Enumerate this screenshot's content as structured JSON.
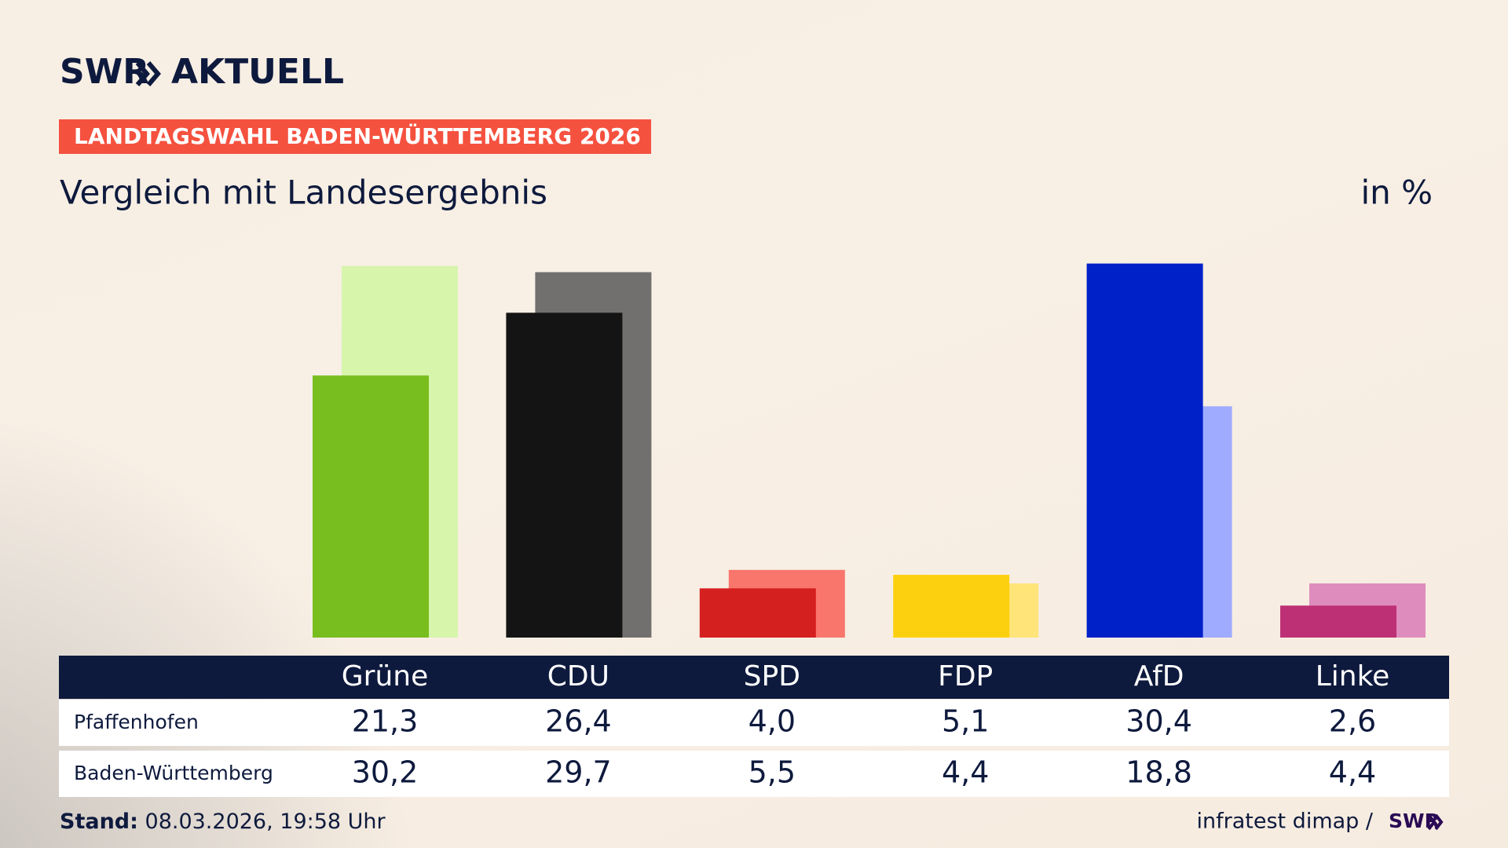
{
  "header": {
    "logo": "SWR",
    "logo_suffix": "AKTUELL",
    "kicker": "LANDTAGSWAHL BADEN-WÜRTTEMBERG 2026"
  },
  "chart_data": {
    "type": "bar",
    "title": "Vergleich mit Landesergebnis",
    "unit": "in %",
    "categories": [
      "Grüne",
      "CDU",
      "SPD",
      "FDP",
      "AfD",
      "Linke"
    ],
    "series": [
      {
        "name": "Pfaffenhofen",
        "colors": [
          "#78be1e",
          "#141414",
          "#d52020",
          "#fdd00f",
          "#0020c8",
          "#be3075"
        ],
        "values": [
          21.3,
          26.4,
          4.0,
          5.1,
          30.4,
          2.6
        ],
        "value_labels": [
          "21,3",
          "26,4",
          "4,0",
          "5,1",
          "30,4",
          "2,6"
        ]
      },
      {
        "name": "Baden-Württemberg",
        "colors": [
          "#d7f5ab",
          "#72706e",
          "#f9766c",
          "#ffe47a",
          "#9fabff",
          "#de8cbd"
        ],
        "values": [
          30.2,
          29.7,
          5.5,
          4.4,
          18.8,
          4.4
        ],
        "value_labels": [
          "30,2",
          "29,7",
          "5,5",
          "4,4",
          "18,8",
          "4,4"
        ]
      }
    ]
  },
  "footer": {
    "stand_label": "Stand:",
    "stand": "08.03.2026, 19:58 Uhr",
    "source": "infratest dimap /",
    "source_logo": "SWR"
  }
}
